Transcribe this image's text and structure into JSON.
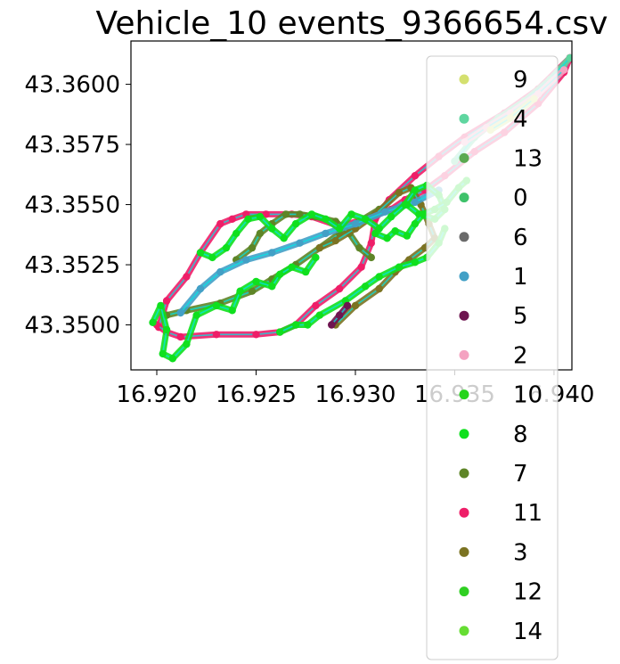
{
  "chart_data": {
    "type": "scatter",
    "title": "Vehicle_10 events_9366654.csv",
    "xlabel": "",
    "ylabel": "",
    "xlim": [
      16.9187,
      16.9409
    ],
    "ylim": [
      43.34813,
      43.3618
    ],
    "x_ticks": [
      "16.920",
      "16.925",
      "16.930",
      "16.935",
      "16.940"
    ],
    "y_ticks": [
      "43.3500",
      "43.3525",
      "43.3550",
      "43.3575",
      "43.3600"
    ],
    "x_tick_values": [
      16.92,
      16.925,
      16.93,
      16.935,
      16.94
    ],
    "y_tick_values": [
      43.35,
      43.3525,
      43.355,
      43.3575,
      43.36
    ],
    "legend_position": "upper-right",
    "series": [
      {
        "name": "9",
        "color": "#d4e06f"
      },
      {
        "name": "4",
        "color": "#5fd6a0"
      },
      {
        "name": "13",
        "color": "#5aaa50"
      },
      {
        "name": "0",
        "color": "#3ec26a"
      },
      {
        "name": "6",
        "color": "#6a6a6a"
      },
      {
        "name": "1",
        "color": "#42a0c6"
      },
      {
        "name": "5",
        "color": "#6e1550"
      },
      {
        "name": "2",
        "color": "#f4a3c1"
      },
      {
        "name": "10",
        "color": "#25d41a"
      },
      {
        "name": "8",
        "color": "#0fe01e"
      },
      {
        "name": "7",
        "color": "#5e8527"
      },
      {
        "name": "11",
        "color": "#ee1e68"
      },
      {
        "name": "3",
        "color": "#7b7322"
      },
      {
        "name": "12",
        "color": "#2fcf22"
      },
      {
        "name": "14",
        "color": "#66dd33"
      }
    ],
    "track_layers": [
      {
        "series": "11",
        "points": [
          [
            16.9201,
            43.3499
          ],
          [
            16.9205,
            43.351
          ],
          [
            16.9215,
            43.352
          ],
          [
            16.9222,
            43.353
          ],
          [
            16.9232,
            43.3542
          ],
          [
            16.9238,
            43.3544
          ],
          [
            16.9245,
            43.3546
          ],
          [
            16.9255,
            43.3546
          ],
          [
            16.9268,
            43.3546
          ],
          [
            16.9278,
            43.3545
          ],
          [
            16.9292,
            43.3541
          ],
          [
            16.9305,
            43.3544
          ],
          [
            16.9318,
            43.3548
          ],
          [
            16.9325,
            43.3552
          ],
          [
            16.9335,
            43.3556
          ],
          [
            16.9345,
            43.3562
          ],
          [
            16.936,
            43.3572
          ],
          [
            16.9375,
            43.358
          ],
          [
            16.9392,
            43.3592
          ],
          [
            16.9405,
            43.3605
          ],
          [
            16.9408,
            43.3611
          ]
        ]
      },
      {
        "series": "11",
        "points": [
          [
            16.92,
            43.35
          ],
          [
            16.9205,
            43.3497
          ],
          [
            16.9212,
            43.3495
          ],
          [
            16.923,
            43.3496
          ],
          [
            16.925,
            43.3496
          ],
          [
            16.9262,
            43.3497
          ],
          [
            16.927,
            43.35
          ],
          [
            16.928,
            43.3508
          ],
          [
            16.9292,
            43.3515
          ],
          [
            16.9303,
            43.3524
          ],
          [
            16.9308,
            43.3534
          ],
          [
            16.931,
            43.3544
          ],
          [
            16.9317,
            43.3552
          ],
          [
            16.933,
            43.3562
          ],
          [
            16.9342,
            43.357
          ],
          [
            16.9355,
            43.3578
          ],
          [
            16.9375,
            43.3588
          ],
          [
            16.9392,
            43.3598
          ],
          [
            16.9408,
            43.3611
          ]
        ]
      },
      {
        "series": "7",
        "points": [
          [
            16.9205,
            43.3504
          ],
          [
            16.9215,
            43.3506
          ],
          [
            16.9232,
            43.3509
          ],
          [
            16.9248,
            43.3514
          ],
          [
            16.9258,
            43.3519
          ],
          [
            16.927,
            43.3525
          ],
          [
            16.9282,
            43.3532
          ],
          [
            16.9292,
            43.3538
          ],
          [
            16.9302,
            43.3543
          ],
          [
            16.9312,
            43.3548
          ]
        ]
      },
      {
        "series": "7",
        "points": [
          [
            16.924,
            43.3527
          ],
          [
            16.9248,
            43.3532
          ],
          [
            16.9252,
            43.3538
          ],
          [
            16.9258,
            43.3542
          ],
          [
            16.9265,
            43.3546
          ],
          [
            16.9272,
            43.3546
          ],
          [
            16.928,
            43.3545
          ],
          [
            16.929,
            43.3543
          ],
          [
            16.9297,
            43.3538
          ],
          [
            16.9302,
            43.3532
          ],
          [
            16.9308,
            43.3528
          ]
        ]
      },
      {
        "series": "3",
        "points": [
          [
            16.9282,
            43.3532
          ],
          [
            16.929,
            43.3535
          ],
          [
            16.93,
            43.354
          ],
          [
            16.931,
            43.3546
          ],
          [
            16.9322,
            43.3555
          ],
          [
            16.9328,
            43.3557
          ],
          [
            16.9333,
            43.355
          ],
          [
            16.9337,
            43.3542
          ],
          [
            16.934,
            43.3536
          ],
          [
            16.9335,
            43.3532
          ],
          [
            16.9327,
            43.3527
          ],
          [
            16.932,
            43.3522
          ],
          [
            16.9312,
            43.3515
          ],
          [
            16.93,
            43.3508
          ],
          [
            16.929,
            43.35
          ]
        ]
      },
      {
        "series": "1",
        "points": [
          [
            16.9212,
            43.3505
          ],
          [
            16.9222,
            43.3515
          ],
          [
            16.9232,
            43.3522
          ],
          [
            16.9245,
            43.3527
          ],
          [
            16.9258,
            43.353
          ],
          [
            16.9272,
            43.3534
          ],
          [
            16.9285,
            43.3538
          ],
          [
            16.93,
            43.3542
          ],
          [
            16.9315,
            43.3547
          ],
          [
            16.933,
            43.3551
          ],
          [
            16.9342,
            43.3556
          ]
        ]
      },
      {
        "series": "8",
        "points": [
          [
            16.9198,
            43.3501
          ],
          [
            16.9202,
            43.3508
          ],
          [
            16.9205,
            43.3498
          ],
          [
            16.9203,
            43.3488
          ],
          [
            16.9208,
            43.3486
          ],
          [
            16.9215,
            43.3492
          ],
          [
            16.922,
            43.3504
          ],
          [
            16.923,
            43.3508
          ],
          [
            16.9238,
            43.3506
          ],
          [
            16.9242,
            43.3514
          ],
          [
            16.925,
            43.3518
          ],
          [
            16.9258,
            43.3516
          ],
          [
            16.9262,
            43.3521
          ],
          [
            16.9268,
            43.3524
          ],
          [
            16.9275,
            43.3522
          ],
          [
            16.928,
            43.3528
          ]
        ]
      },
      {
        "series": "8",
        "points": [
          [
            16.9222,
            43.353
          ],
          [
            16.9228,
            43.3528
          ],
          [
            16.9235,
            43.3532
          ],
          [
            16.924,
            43.3538
          ],
          [
            16.9246,
            43.3544
          ],
          [
            16.9252,
            43.3545
          ],
          [
            16.9258,
            43.354
          ],
          [
            16.9264,
            43.3536
          ],
          [
            16.927,
            43.3542
          ],
          [
            16.9278,
            43.3546
          ],
          [
            16.9285,
            43.3544
          ],
          [
            16.9292,
            43.354
          ],
          [
            16.9298,
            43.3546
          ],
          [
            16.9305,
            43.3544
          ],
          [
            16.9312,
            43.354
          ],
          [
            16.9318,
            43.3545
          ],
          [
            16.9325,
            43.355
          ],
          [
            16.933,
            43.3556
          ],
          [
            16.9336,
            43.3558
          ],
          [
            16.9342,
            43.3554
          ],
          [
            16.9345,
            43.3548
          ],
          [
            16.934,
            43.3544
          ],
          [
            16.9332,
            43.3546
          ],
          [
            16.9326,
            43.355
          ]
        ]
      },
      {
        "series": "8",
        "points": [
          [
            16.9262,
            43.3497
          ],
          [
            16.927,
            43.35
          ],
          [
            16.9276,
            43.35
          ],
          [
            16.9282,
            43.3504
          ],
          [
            16.9295,
            43.351
          ],
          [
            16.9305,
            43.3516
          ],
          [
            16.9312,
            43.352
          ],
          [
            16.9322,
            43.3524
          ],
          [
            16.933,
            43.3526
          ],
          [
            16.9336,
            43.3528
          ],
          [
            16.9342,
            43.3534
          ],
          [
            16.9345,
            43.354
          ]
        ]
      },
      {
        "series": "8",
        "points": [
          [
            16.931,
            43.3538
          ],
          [
            16.9316,
            43.3536
          ],
          [
            16.932,
            43.3539
          ],
          [
            16.9326,
            43.3537
          ],
          [
            16.933,
            43.3542
          ],
          [
            16.9334,
            43.3546
          ],
          [
            16.934,
            43.3548
          ],
          [
            16.9346,
            43.3551
          ],
          [
            16.9352,
            43.3557
          ],
          [
            16.9356,
            43.356
          ]
        ]
      },
      {
        "series": "4",
        "points": [
          [
            16.935,
            43.3568
          ],
          [
            16.936,
            43.3578
          ],
          [
            16.9372,
            43.3586
          ],
          [
            16.9385,
            43.3593
          ],
          [
            16.9398,
            43.3602
          ],
          [
            16.9408,
            43.3611
          ]
        ]
      },
      {
        "series": "2",
        "points": [
          [
            16.9355,
            43.3576
          ],
          [
            16.9366,
            43.3582
          ],
          [
            16.9378,
            43.3588
          ],
          [
            16.9392,
            43.3596
          ],
          [
            16.9405,
            43.3606
          ]
        ]
      },
      {
        "series": "5",
        "points": [
          [
            16.9288,
            43.35
          ],
          [
            16.9292,
            43.3504
          ],
          [
            16.9296,
            43.3508
          ]
        ]
      },
      {
        "series": "9",
        "points": [
          [
            16.9368,
            43.3581
          ],
          [
            16.9378,
            43.3586
          ],
          [
            16.939,
            43.3594
          ]
        ]
      }
    ]
  }
}
